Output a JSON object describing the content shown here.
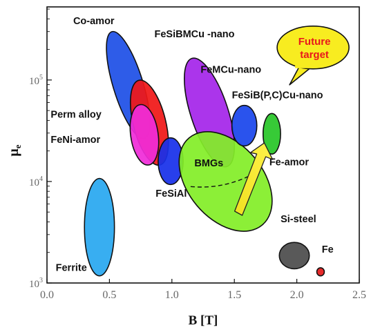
{
  "chart_data": {
    "type": "scatter",
    "title": "",
    "xlabel": "B [T]",
    "ylabel_main": "μ",
    "ylabel_sub": "e",
    "xlim": [
      0.0,
      2.5
    ],
    "ylim_log10": [
      3,
      5.72
    ],
    "y_scale": "log",
    "grid": false,
    "x_ticks": [
      {
        "value": 0.0,
        "label": "0.0"
      },
      {
        "value": 0.5,
        "label": "0.5"
      },
      {
        "value": 1.0,
        "label": "1.0"
      },
      {
        "value": 1.5,
        "label": "1.5"
      },
      {
        "value": 2.0,
        "label": "2.0"
      },
      {
        "value": 2.5,
        "label": "2.5"
      }
    ],
    "y_ticks": [
      {
        "value": 1000,
        "base": "10",
        "exp": "3"
      },
      {
        "value": 10000,
        "base": "10",
        "exp": "4"
      },
      {
        "value": 100000,
        "base": "10",
        "exp": "5"
      }
    ],
    "regions": [
      {
        "name": "Ferrite",
        "color": "#29a8f0",
        "cx": 0.42,
        "cy": 3.55,
        "rx": 0.12,
        "ry": 0.48,
        "rot": 0
      },
      {
        "name": "Co-amor",
        "color": "#1e50e6",
        "cx": 0.65,
        "cy": 4.95,
        "rx": 0.12,
        "ry": 0.55,
        "rot": -17
      },
      {
        "name": "Perm alloy",
        "color": "#f01818",
        "cx": 0.82,
        "cy": 4.58,
        "rx": 0.13,
        "ry": 0.43,
        "rot": -14
      },
      {
        "name": "FeNi-amor",
        "color": "#f02cd8",
        "cx": 0.78,
        "cy": 4.46,
        "rx": 0.11,
        "ry": 0.3,
        "rot": -8
      },
      {
        "name": "FeSiAl",
        "color": "#1830ea",
        "cx": 0.99,
        "cy": 4.2,
        "rx": 0.1,
        "ry": 0.23,
        "rot": 0
      },
      {
        "name": "FeSiBMCu -nano",
        "color": "#a526ea",
        "cx": 1.3,
        "cy": 4.68,
        "rx": 0.15,
        "ry": 0.56,
        "rot": -18
      },
      {
        "name": "BMGs",
        "color": "#83ee28",
        "cx": 1.43,
        "cy": 4.0,
        "rx": 0.3,
        "ry": 0.56,
        "rot": -40
      },
      {
        "name": "FeMCu-nano",
        "color": "#1a46ec",
        "cx": 1.58,
        "cy": 4.55,
        "rx": 0.1,
        "ry": 0.2,
        "rot": 0
      },
      {
        "name": "FeSiB(P,C)Cu-nano",
        "color": "#28c628",
        "cx": 1.8,
        "cy": 4.47,
        "rx": 0.07,
        "ry": 0.2,
        "rot": 0
      },
      {
        "name": "Si-steel",
        "color": "#4c4c4c",
        "cx": 1.98,
        "cy": 3.27,
        "rx": 0.12,
        "ry": 0.13,
        "rot": 0
      },
      {
        "name": "Fe",
        "color": "#e41a1a",
        "cx": 2.19,
        "cy": 3.11,
        "rx": 0.03,
        "ry": 0.04,
        "rot": 0
      }
    ],
    "annotations": [
      {
        "text": "Co-amor",
        "x": 0.21,
        "y": 5.55
      },
      {
        "text": "Perm alloy",
        "x": 0.03,
        "y": 4.63
      },
      {
        "text": "FeNi-amor",
        "x": 0.03,
        "y": 4.38
      },
      {
        "text": "FeSiAl",
        "x": 0.87,
        "y": 3.85
      },
      {
        "text": "Ferrite",
        "x": 0.07,
        "y": 3.12
      },
      {
        "text": "FeSiBMCu -nano",
        "x": 0.86,
        "y": 5.42
      },
      {
        "text": "FeMCu-nano",
        "x": 1.23,
        "y": 5.07
      },
      {
        "text": "FeSiB(P,C)Cu-nano",
        "x": 1.48,
        "y": 4.82
      },
      {
        "text": "BMGs",
        "x": 1.18,
        "y": 4.15
      },
      {
        "text": "Fe-amor",
        "x": 1.78,
        "y": 4.16
      },
      {
        "text": "Si-steel",
        "x": 1.87,
        "y": 3.6
      },
      {
        "text": "Fe",
        "x": 2.2,
        "y": 3.3
      }
    ],
    "callout": {
      "line1": "Future",
      "line2": "target",
      "bubble_color": "#f8ec20",
      "text_color": "#e8181c"
    }
  }
}
